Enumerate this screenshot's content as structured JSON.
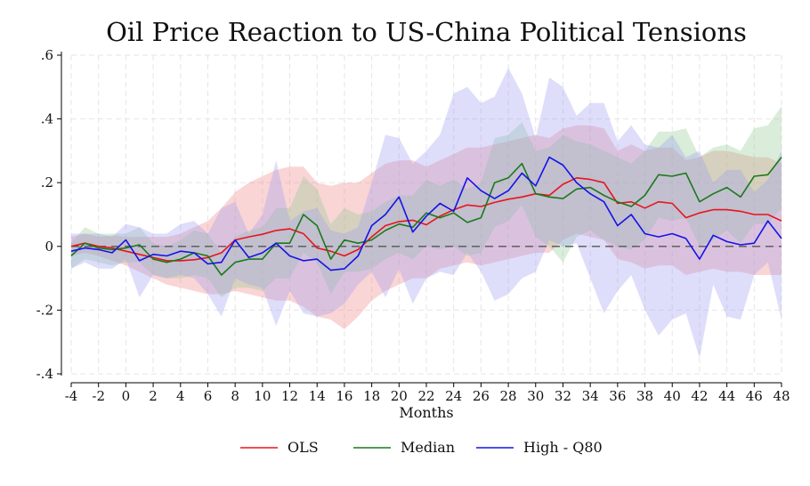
{
  "chart_data": {
    "type": "line",
    "title": "Oil Price Reaction to US-China Political Tensions",
    "xlabel": "Months",
    "ylabel": "",
    "xlim": [
      -4,
      48
    ],
    "ylim": [
      -0.4,
      0.6
    ],
    "x_ticks": [
      -4,
      -2,
      0,
      2,
      4,
      6,
      8,
      10,
      12,
      14,
      16,
      18,
      20,
      22,
      24,
      26,
      28,
      30,
      32,
      34,
      36,
      38,
      40,
      42,
      44,
      46,
      48
    ],
    "y_ticks": [
      {
        "value": -0.4,
        "label": "-.4"
      },
      {
        "value": -0.2,
        "label": "-.2"
      },
      {
        "value": 0,
        "label": "0"
      },
      {
        "value": 0.2,
        "label": ".2"
      },
      {
        "value": 0.4,
        "label": ".4"
      },
      {
        "value": 0.6,
        "label": ".6"
      }
    ],
    "grid": true,
    "zero_line": true,
    "legend_position": "bottom",
    "x": [
      -4,
      -3,
      -2,
      -1,
      0,
      1,
      2,
      3,
      4,
      5,
      6,
      7,
      8,
      9,
      10,
      11,
      12,
      13,
      14,
      15,
      16,
      17,
      18,
      19,
      20,
      21,
      22,
      23,
      24,
      25,
      26,
      27,
      28,
      29,
      30,
      31,
      32,
      33,
      34,
      35,
      36,
      37,
      38,
      39,
      40,
      41,
      42,
      43,
      44,
      45,
      46,
      47,
      48
    ],
    "series": [
      {
        "name": "OLS",
        "color": "#e8141a",
        "band_color": "#f08080",
        "values": [
          0.0,
          0.01,
          0.0,
          -0.005,
          -0.015,
          -0.025,
          -0.035,
          -0.045,
          -0.045,
          -0.042,
          -0.035,
          -0.02,
          0.02,
          0.03,
          0.038,
          0.05,
          0.055,
          0.04,
          -0.005,
          -0.015,
          -0.03,
          -0.01,
          0.03,
          0.065,
          0.078,
          0.082,
          0.068,
          0.095,
          0.115,
          0.13,
          0.125,
          0.138,
          0.148,
          0.155,
          0.165,
          0.16,
          0.195,
          0.215,
          0.21,
          0.2,
          0.135,
          0.14,
          0.12,
          0.14,
          0.135,
          0.09,
          0.105,
          0.115,
          0.115,
          0.11,
          0.1,
          0.1,
          0.08
        ],
        "lower": [
          -0.03,
          -0.02,
          -0.03,
          -0.045,
          -0.06,
          -0.08,
          -0.1,
          -0.12,
          -0.13,
          -0.14,
          -0.15,
          -0.15,
          -0.14,
          -0.15,
          -0.16,
          -0.17,
          -0.17,
          -0.19,
          -0.22,
          -0.23,
          -0.26,
          -0.22,
          -0.17,
          -0.14,
          -0.12,
          -0.1,
          -0.1,
          -0.07,
          -0.06,
          -0.05,
          -0.06,
          -0.05,
          -0.04,
          -0.03,
          -0.02,
          -0.02,
          0.02,
          0.04,
          0.03,
          0.02,
          -0.04,
          -0.05,
          -0.07,
          -0.06,
          -0.06,
          -0.09,
          -0.08,
          -0.07,
          -0.08,
          -0.08,
          -0.09,
          -0.09,
          -0.09
        ],
        "upper": [
          0.03,
          0.04,
          0.03,
          0.035,
          0.03,
          0.03,
          0.03,
          0.03,
          0.04,
          0.06,
          0.08,
          0.12,
          0.17,
          0.2,
          0.22,
          0.24,
          0.25,
          0.25,
          0.2,
          0.19,
          0.2,
          0.2,
          0.23,
          0.26,
          0.27,
          0.27,
          0.25,
          0.27,
          0.29,
          0.31,
          0.31,
          0.32,
          0.33,
          0.34,
          0.35,
          0.34,
          0.37,
          0.38,
          0.38,
          0.37,
          0.3,
          0.32,
          0.3,
          0.31,
          0.31,
          0.27,
          0.28,
          0.3,
          0.3,
          0.29,
          0.28,
          0.28,
          0.26
        ]
      },
      {
        "name": "Median",
        "color": "#1a7a1a",
        "band_color": "#8fc88f",
        "values": [
          -0.03,
          0.01,
          -0.005,
          -0.01,
          -0.005,
          0.005,
          -0.04,
          -0.05,
          -0.04,
          -0.02,
          -0.03,
          -0.09,
          -0.05,
          -0.04,
          -0.04,
          0.01,
          0.01,
          0.1,
          0.065,
          -0.04,
          0.02,
          0.01,
          0.02,
          0.05,
          0.07,
          0.06,
          0.105,
          0.09,
          0.105,
          0.075,
          0.09,
          0.2,
          0.215,
          0.26,
          0.165,
          0.155,
          0.15,
          0.18,
          0.185,
          0.16,
          0.14,
          0.125,
          0.16,
          0.225,
          0.22,
          0.23,
          0.14,
          0.165,
          0.185,
          0.155,
          0.22,
          0.225,
          0.28
        ],
        "lower": [
          -0.07,
          -0.04,
          -0.05,
          -0.06,
          -0.05,
          -0.05,
          -0.09,
          -0.1,
          -0.1,
          -0.09,
          -0.1,
          -0.16,
          -0.13,
          -0.13,
          -0.14,
          -0.1,
          -0.1,
          -0.02,
          -0.05,
          -0.15,
          -0.08,
          -0.08,
          -0.07,
          -0.04,
          -0.02,
          -0.04,
          0.0,
          -0.01,
          0.0,
          -0.03,
          -0.02,
          0.06,
          0.08,
          0.13,
          0.03,
          0.0,
          -0.05,
          0.03,
          0.05,
          0.02,
          0.0,
          -0.01,
          0.02,
          0.09,
          0.08,
          0.09,
          0.0,
          0.02,
          0.05,
          0.01,
          0.07,
          0.07,
          0.12
        ],
        "upper": [
          0.01,
          0.06,
          0.04,
          0.04,
          0.04,
          0.06,
          0.01,
          0.0,
          0.02,
          0.05,
          0.04,
          -0.02,
          0.03,
          0.05,
          0.06,
          0.12,
          0.12,
          0.22,
          0.18,
          0.07,
          0.12,
          0.1,
          0.11,
          0.14,
          0.16,
          0.16,
          0.21,
          0.19,
          0.21,
          0.18,
          0.2,
          0.34,
          0.35,
          0.39,
          0.3,
          0.31,
          0.35,
          0.33,
          0.32,
          0.3,
          0.28,
          0.26,
          0.3,
          0.36,
          0.36,
          0.37,
          0.28,
          0.31,
          0.32,
          0.3,
          0.37,
          0.38,
          0.44
        ]
      },
      {
        "name": "High - Q80",
        "color": "#1414e6",
        "band_color": "#9a9af2",
        "values": [
          -0.015,
          -0.005,
          -0.01,
          -0.02,
          0.02,
          -0.045,
          -0.025,
          -0.03,
          -0.015,
          -0.02,
          -0.055,
          -0.05,
          0.02,
          -0.035,
          -0.02,
          0.01,
          -0.03,
          -0.045,
          -0.04,
          -0.075,
          -0.07,
          -0.03,
          0.065,
          0.1,
          0.155,
          0.045,
          0.095,
          0.135,
          0.11,
          0.215,
          0.175,
          0.15,
          0.175,
          0.23,
          0.19,
          0.28,
          0.255,
          0.2,
          0.165,
          0.14,
          0.065,
          0.1,
          0.04,
          0.03,
          0.04,
          0.025,
          -0.04,
          0.035,
          0.015,
          0.005,
          0.01,
          0.08,
          0.025
        ],
        "lower": [
          -0.07,
          -0.05,
          -0.07,
          -0.07,
          -0.04,
          -0.16,
          -0.09,
          -0.1,
          -0.09,
          -0.1,
          -0.15,
          -0.22,
          -0.1,
          -0.12,
          -0.13,
          -0.25,
          -0.14,
          -0.21,
          -0.22,
          -0.21,
          -0.18,
          -0.12,
          -0.08,
          -0.16,
          -0.07,
          -0.18,
          -0.1,
          -0.08,
          -0.09,
          -0.02,
          -0.08,
          -0.17,
          -0.15,
          -0.1,
          -0.08,
          0.02,
          0.0,
          0.01,
          -0.1,
          -0.21,
          -0.14,
          -0.09,
          -0.2,
          -0.28,
          -0.23,
          -0.21,
          -0.35,
          -0.12,
          -0.22,
          -0.23,
          -0.09,
          -0.05,
          -0.23
        ],
        "upper": [
          0.04,
          0.04,
          0.04,
          0.03,
          0.07,
          0.06,
          0.04,
          0.04,
          0.07,
          0.08,
          0.04,
          0.12,
          0.14,
          0.04,
          0.1,
          0.27,
          0.08,
          0.11,
          0.12,
          0.05,
          0.04,
          0.06,
          0.2,
          0.35,
          0.34,
          0.26,
          0.3,
          0.35,
          0.48,
          0.5,
          0.45,
          0.47,
          0.56,
          0.48,
          0.34,
          0.53,
          0.5,
          0.41,
          0.45,
          0.45,
          0.33,
          0.38,
          0.32,
          0.31,
          0.35,
          0.28,
          0.3,
          0.2,
          0.24,
          0.24,
          0.17,
          0.21,
          0.3
        ]
      }
    ]
  }
}
